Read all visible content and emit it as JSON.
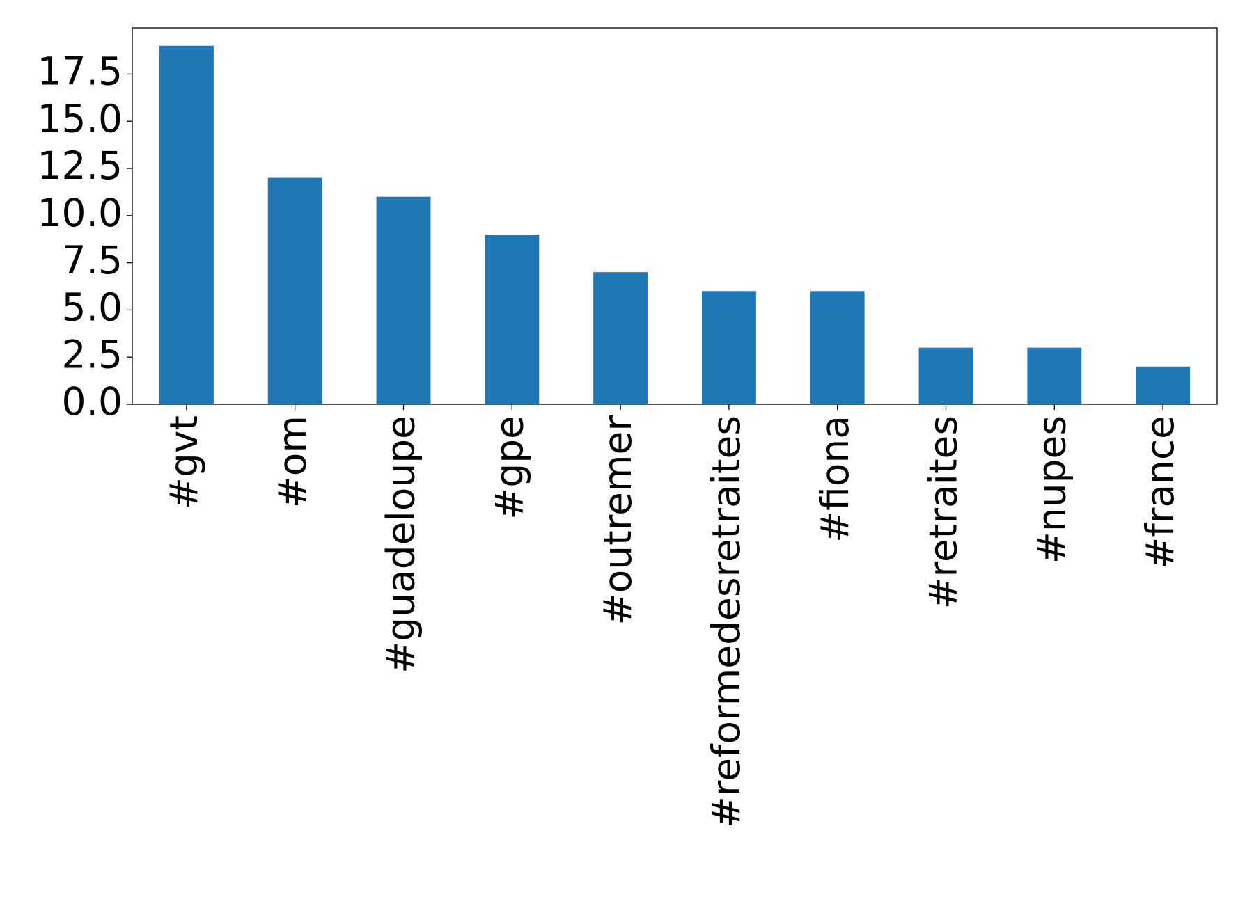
{
  "chart_data": {
    "type": "bar",
    "categories": [
      "#gvt",
      "#om",
      "#guadeloupe",
      "#gpe",
      "#outremer",
      "#reformedesretraites",
      "#fiona",
      "#retraites",
      "#nupes",
      "#france"
    ],
    "values": [
      19,
      12,
      11,
      9,
      7,
      6,
      6,
      3,
      3,
      2
    ],
    "color": "#1f77b4",
    "ylim": [
      0,
      19.95
    ],
    "yticks": [
      {
        "value": 0,
        "label": "0.0"
      },
      2.5,
      {
        "value": 5,
        "label": "5.0"
      },
      7.5,
      {
        "value": 10,
        "label": "10.0"
      },
      12.5,
      {
        "value": 15,
        "label": "15.0"
      },
      17.5
    ],
    "grid": false
  }
}
